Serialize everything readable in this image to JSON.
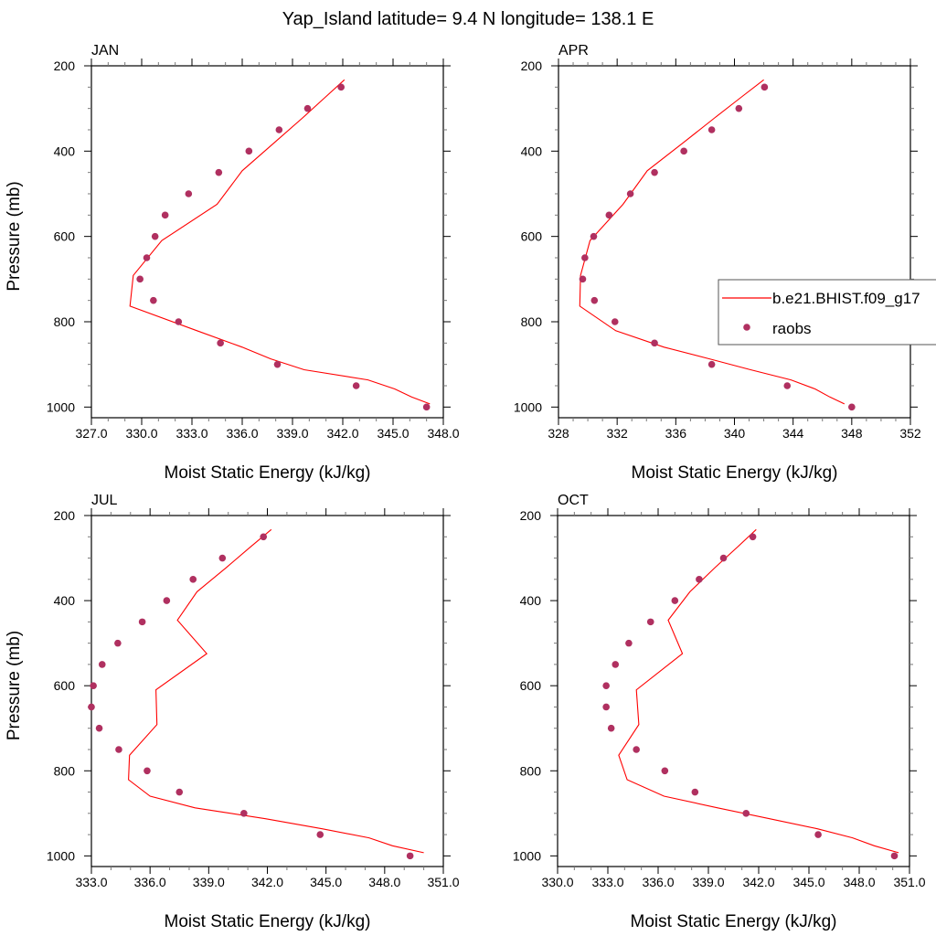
{
  "title": "Yap_Island  latitude= 9.4 N longitude= 138.1 E",
  "colors": {
    "model": "#ff0000",
    "obs": "#b03060",
    "axis": "#000000"
  },
  "legend": {
    "position": "right-center of APR panel",
    "model_label": "b.e21.BHIST.f09_g17",
    "obs_label": "raobs"
  },
  "chart_data": [
    {
      "type": "line",
      "title": "JAN",
      "xlabel": "Moist Static Energy (kJ/kg)",
      "ylabel": "Pressure (mb)",
      "xlim": [
        327,
        348
      ],
      "ylim": [
        200,
        1025
      ],
      "y_reversed": true,
      "xticks": {
        "major_step": 3,
        "minor_step": 1,
        "values": [
          327,
          330,
          333,
          336,
          339,
          342,
          345,
          348
        ],
        "labels": [
          "327.0",
          "330.0",
          "333.0",
          "336.0",
          "339.0",
          "342.0",
          "345.0",
          "348.0"
        ]
      },
      "yticks": {
        "major_step": 200,
        "minor_step": 50,
        "values": [
          200,
          400,
          600,
          800,
          1000
        ],
        "labels": [
          "200",
          "400",
          "600",
          "800",
          "1000"
        ]
      },
      "series": [
        {
          "name": "b.e21.BHIST.f09_g17",
          "kind": "line",
          "p": [
            232.8,
            273.9,
            322.2,
            379.1,
            445.9,
            524.7,
            609.8,
            691.4,
            763.4,
            820.9,
            859.5,
            887.0,
            912.6,
            936.2,
            957.5,
            976.3,
            992.6
          ],
          "mse": [
            342.1,
            340.95,
            339.6,
            337.95,
            336.0,
            334.5,
            331.2,
            329.5,
            329.3,
            333.3,
            336.0,
            337.7,
            339.7,
            343.5,
            345.1,
            346.1,
            347.2
          ]
        },
        {
          "name": "raobs",
          "kind": "markers",
          "p": [
            250,
            300,
            350,
            400,
            450,
            500,
            550,
            600,
            650,
            700,
            750,
            800,
            850,
            900,
            950,
            1000
          ],
          "mse": [
            341.9,
            339.9,
            338.2,
            336.4,
            334.6,
            332.8,
            331.4,
            330.8,
            330.3,
            329.9,
            330.7,
            332.2,
            334.7,
            338.1,
            342.8,
            347.0
          ]
        }
      ]
    },
    {
      "type": "line",
      "title": "APR",
      "xlabel": "Moist Static Energy (kJ/kg)",
      "ylabel": "",
      "xlim": [
        328,
        352
      ],
      "ylim": [
        200,
        1025
      ],
      "y_reversed": true,
      "xticks": {
        "major_step": 4,
        "minor_step": 1,
        "values": [
          328,
          332,
          336,
          340,
          344,
          348,
          352
        ],
        "labels": [
          "328",
          "332",
          "336",
          "340",
          "344",
          "348",
          "352"
        ]
      },
      "yticks": {
        "major_step": 200,
        "minor_step": 50,
        "values": [
          200,
          400,
          600,
          800,
          1000
        ],
        "labels": [
          "200",
          "400",
          "600",
          "800",
          "1000"
        ]
      },
      "series": [
        {
          "name": "b.e21.BHIST.f09_g17",
          "kind": "line",
          "p": [
            232.8,
            273.9,
            322.2,
            379.1,
            445.9,
            524.7,
            609.8,
            691.4,
            763.4,
            820.9,
            859.5,
            887.0,
            912.6,
            936.2,
            957.5,
            976.3,
            992.6
          ],
          "mse": [
            342.0,
            340.45,
            338.65,
            336.55,
            334.05,
            332.4,
            330.15,
            329.5,
            329.45,
            331.9,
            335.2,
            338.3,
            341.1,
            343.85,
            345.5,
            346.5,
            347.5
          ]
        },
        {
          "name": "raobs",
          "kind": "markers",
          "p": [
            250,
            300,
            350,
            400,
            450,
            500,
            550,
            600,
            650,
            700,
            750,
            800,
            850,
            900,
            950,
            1000
          ],
          "mse": [
            342.05,
            340.3,
            338.45,
            336.55,
            334.55,
            332.9,
            331.45,
            330.4,
            329.8,
            329.65,
            330.45,
            331.85,
            334.55,
            338.45,
            343.6,
            348.0
          ]
        }
      ]
    },
    {
      "type": "line",
      "title": "JUL",
      "xlabel": "Moist Static Energy (kJ/kg)",
      "ylabel": "Pressure (mb)",
      "xlim": [
        333,
        351
      ],
      "ylim": [
        200,
        1025
      ],
      "y_reversed": true,
      "xticks": {
        "major_step": 3,
        "minor_step": 1,
        "values": [
          333,
          336,
          339,
          342,
          345,
          348,
          351
        ],
        "labels": [
          "333.0",
          "336.0",
          "339.0",
          "342.0",
          "345.0",
          "348.0",
          "351.0"
        ]
      },
      "yticks": {
        "major_step": 200,
        "minor_step": 50,
        "values": [
          200,
          400,
          600,
          800,
          1000
        ],
        "labels": [
          "200",
          "400",
          "600",
          "800",
          "1000"
        ]
      },
      "series": [
        {
          "name": "b.e21.BHIST.f09_g17",
          "kind": "line",
          "p": [
            232.8,
            273.9,
            322.2,
            379.1,
            445.9,
            524.7,
            609.8,
            691.4,
            763.4,
            820.9,
            859.5,
            887.0,
            912.6,
            936.2,
            957.5,
            976.3,
            992.6
          ],
          "mse": [
            342.2,
            341.13,
            339.9,
            338.4,
            337.4,
            338.9,
            336.3,
            336.35,
            334.95,
            334.9,
            336.0,
            338.3,
            341.9,
            344.8,
            347.2,
            348.4,
            350.0
          ]
        },
        {
          "name": "raobs",
          "kind": "markers",
          "p": [
            250,
            300,
            350,
            400,
            450,
            500,
            550,
            600,
            650,
            700,
            750,
            800,
            850,
            900,
            950,
            1000
          ],
          "mse": [
            341.8,
            339.7,
            338.2,
            336.85,
            335.6,
            334.35,
            333.55,
            333.1,
            333.0,
            333.4,
            334.4,
            335.85,
            337.5,
            340.8,
            344.7,
            349.3
          ]
        }
      ]
    },
    {
      "type": "line",
      "title": "OCT",
      "xlabel": "Moist Static Energy (kJ/kg)",
      "ylabel": "",
      "xlim": [
        330,
        351
      ],
      "ylim": [
        200,
        1025
      ],
      "y_reversed": true,
      "xticks": {
        "major_step": 3,
        "minor_step": 1,
        "values": [
          330,
          333,
          336,
          339,
          342,
          345,
          348,
          351
        ],
        "labels": [
          "330.0",
          "333.0",
          "336.0",
          "339.0",
          "342.0",
          "345.0",
          "348.0",
          "351.0"
        ]
      },
      "yticks": {
        "major_step": 200,
        "minor_step": 50,
        "values": [
          200,
          400,
          600,
          800,
          1000
        ],
        "labels": [
          "200",
          "400",
          "600",
          "800",
          "1000"
        ]
      },
      "series": [
        {
          "name": "b.e21.BHIST.f09_g17",
          "kind": "line",
          "p": [
            232.8,
            273.9,
            322.2,
            379.1,
            445.9,
            524.7,
            609.8,
            691.4,
            763.4,
            820.9,
            859.5,
            887.0,
            912.6,
            936.2,
            957.5,
            976.3,
            992.6
          ],
          "mse": [
            341.85,
            340.74,
            339.4,
            337.9,
            336.6,
            337.45,
            334.7,
            334.85,
            333.65,
            334.15,
            336.35,
            339.55,
            342.65,
            345.5,
            347.6,
            348.9,
            350.35
          ]
        },
        {
          "name": "raobs",
          "kind": "markers",
          "p": [
            250,
            300,
            350,
            400,
            450,
            500,
            550,
            600,
            650,
            700,
            750,
            800,
            850,
            900,
            950,
            1000
          ],
          "mse": [
            341.65,
            339.9,
            338.45,
            337.0,
            335.55,
            334.25,
            333.45,
            332.9,
            332.9,
            333.2,
            334.7,
            336.4,
            338.2,
            341.25,
            345.55,
            350.1
          ]
        }
      ]
    }
  ]
}
